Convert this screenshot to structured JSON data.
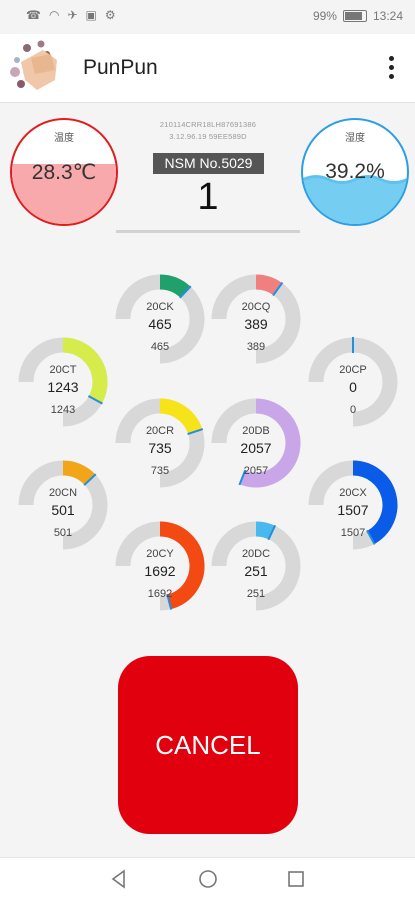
{
  "status_bar": {
    "battery": "99%",
    "time": "13:24"
  },
  "app": {
    "title": "PunPun"
  },
  "temperature": {
    "label": "温度",
    "value": "28.3℃"
  },
  "humidity": {
    "label": "湿度",
    "value": "39.2%"
  },
  "device": {
    "serial_line1": "210114CRR18LH87691386",
    "serial_line2": "3.12.96.19 59EE589D",
    "nsm": "NSM No.5029",
    "count": "1"
  },
  "gauges": [
    {
      "name": "20CK",
      "value": "465",
      "sub": "465",
      "fraction": 0.12,
      "color": "#20a06a"
    },
    {
      "name": "20CQ",
      "value": "389",
      "sub": "389",
      "fraction": 0.1,
      "color": "#f08080"
    },
    {
      "name": "20CT",
      "value": "1243",
      "sub": "1243",
      "fraction": 0.33,
      "color": "#d6ec4a"
    },
    {
      "name": "20CP",
      "value": "0",
      "sub": "0",
      "fraction": 0.0,
      "color": "#2a7fd4"
    },
    {
      "name": "20CR",
      "value": "735",
      "sub": "735",
      "fraction": 0.2,
      "color": "#f6e31a"
    },
    {
      "name": "20DB",
      "value": "2057",
      "sub": "2057",
      "fraction": 0.56,
      "color": "#c8a6e8"
    },
    {
      "name": "20CN",
      "value": "501",
      "sub": "501",
      "fraction": 0.13,
      "color": "#f3a51a"
    },
    {
      "name": "20CX",
      "value": "1507",
      "sub": "1507",
      "fraction": 0.42,
      "color": "#0a5ce8"
    },
    {
      "name": "20CY",
      "value": "1692",
      "sub": "1692",
      "fraction": 0.46,
      "color": "#f24a12"
    },
    {
      "name": "20DC",
      "value": "251",
      "sub": "251",
      "fraction": 0.07,
      "color": "#49b8ee"
    }
  ],
  "cancel_button": {
    "label": "CANCEL"
  },
  "icons": {
    "status_left": [
      "sim-icon",
      "wifi-icon",
      "airplane-icon",
      "nfc-icon",
      "settings-icon"
    ],
    "status_right": [
      "signal-icon",
      "battery-icon"
    ],
    "nav": [
      "back-icon",
      "home-icon",
      "recents-icon"
    ]
  }
}
